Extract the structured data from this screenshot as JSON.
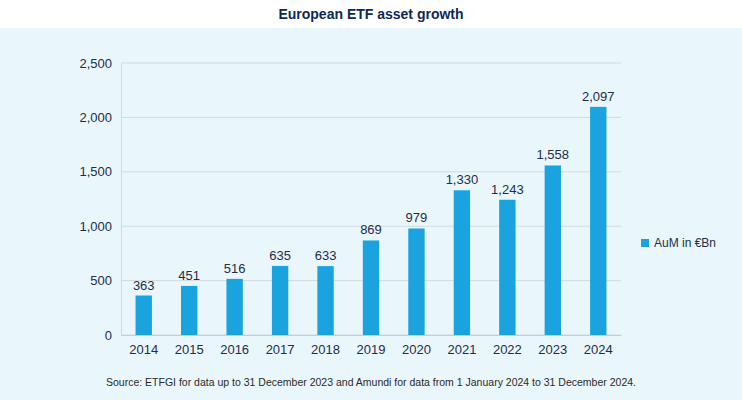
{
  "chart_data": {
    "type": "bar",
    "title": "European ETF asset growth",
    "source": "Source: ETFGI for data up to 31 December 2023 and Amundi for data from 1 January 2024 to 31 December 2024.",
    "categories": [
      "2014",
      "2015",
      "2016",
      "2017",
      "2018",
      "2019",
      "2020",
      "2021",
      "2022",
      "2023",
      "2024"
    ],
    "series": [
      {
        "name": "AuM in €Bn",
        "color": "#1aa3df",
        "values": [
          363,
          451,
          516,
          635,
          633,
          869,
          979,
          1330,
          1243,
          1558,
          2097
        ],
        "value_labels": [
          "363",
          "451",
          "516",
          "635",
          "633",
          "869",
          "979",
          "1,330",
          "1,243",
          "1,558",
          "2,097"
        ]
      }
    ],
    "ylim": [
      0,
      2500
    ],
    "yticks": [
      0,
      500,
      {
        "value": 1000,
        "label": "1,000"
      },
      {
        "value": 1500,
        "label": "1,500"
      },
      {
        "value": 2000,
        "label": "2,000"
      },
      {
        "value": 2500,
        "label": "2,500"
      }
    ],
    "grid": true,
    "legend": "right",
    "data_labels": true
  }
}
